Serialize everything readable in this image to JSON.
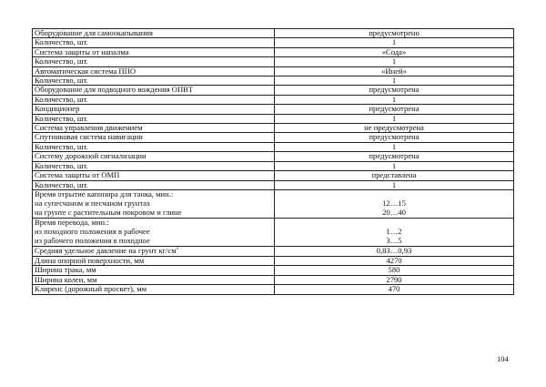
{
  "rows": [
    {
      "label": "Оборудование для самоокапывания",
      "value": "предусмотрено"
    },
    {
      "label": "Количество, шт.",
      "value": "1"
    },
    {
      "label": "Система защиты от напалма",
      "value": "«Сода»"
    },
    {
      "label": "Количество, шт.",
      "value": "1"
    },
    {
      "label": "Автоматическая система ППО",
      "value": "«Иней»"
    },
    {
      "label": "Количество, шт.",
      "value": "1"
    },
    {
      "label": "Оборудование для подводного вождения ОПВТ",
      "value": "предусмотрена"
    },
    {
      "label": "Количество, шт.",
      "value": "1"
    },
    {
      "label": "Кондиционер",
      "value": "предусмотрена"
    },
    {
      "label": "Количество, шт.",
      "value": "1"
    },
    {
      "label": "Система управления движением",
      "value": "не предусмотрена"
    },
    {
      "label": "Спутниковая система навигации",
      "value": "предусмотрена"
    },
    {
      "label": "Количество, шт.",
      "value": "1"
    },
    {
      "label": "Систему дорожной сигнализации",
      "value": "предусмотрена"
    },
    {
      "label": "Количество, шт.",
      "value": "1"
    },
    {
      "label": "Система защиты от ОМП",
      "value": "представлена"
    },
    {
      "label": "Количество, шт.",
      "value": "1"
    }
  ],
  "multi": [
    {
      "labels": [
        "Время отрытие капонира для танка, мин.:",
        "на супесчаном и песчаном грунтах",
        "на грунте с растительным покровом и глине"
      ],
      "values": [
        "",
        "12…15",
        "20…40"
      ]
    },
    {
      "labels": [
        "Время перевода, мин.:",
        "из походного положения в рабочее",
        "из рабочего положения в походное"
      ],
      "values": [
        "",
        "1…2",
        "3…5"
      ]
    }
  ],
  "pressure": {
    "label": "Средняя удельное давление на грунт кг/см",
    "sup": "2",
    "value": "0,83…0,93"
  },
  "tail": [
    {
      "label": "Длина опорной поверхности, мм",
      "value": "4270"
    },
    {
      "label": "Ширина трака, мм",
      "value": "580"
    },
    {
      "label": "Ширина колеи, мм",
      "value": "2790"
    },
    {
      "label": "Клиренс (дорожный просвет), мм",
      "value": "470"
    }
  ],
  "page_number": "104"
}
